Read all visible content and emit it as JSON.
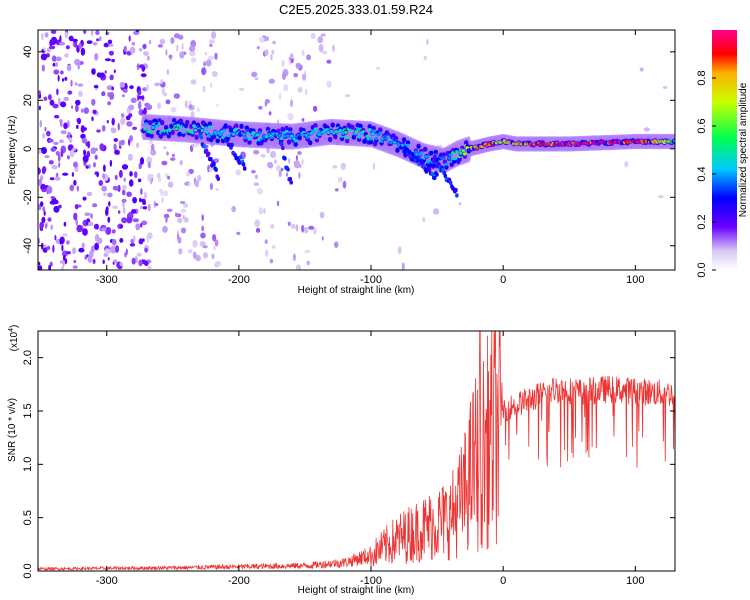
{
  "title": "C2E5.2025.333.01.59.R24",
  "chart_data": [
    {
      "type": "heatmap",
      "xlabel": "Height of straight line (km)",
      "ylabel": "Frequency (Hz)",
      "xlim": [
        -352,
        130
      ],
      "ylim": [
        -50,
        49
      ],
      "x_ticks": [
        -300,
        -200,
        -100,
        0,
        100
      ],
      "x_tick_labels": [
        "-300",
        "-200",
        "-100",
        "0",
        "100"
      ],
      "y_ticks": [
        -40,
        -20,
        0,
        20,
        40
      ],
      "y_tick_labels": [
        "-40",
        "-20",
        "0",
        "20",
        "40"
      ],
      "colorbar": {
        "label": "Normalized spectral amplitude",
        "range": [
          0,
          1
        ],
        "ticks": [
          0.0,
          0.2,
          0.4,
          0.6,
          0.8
        ],
        "tick_labels": [
          "0.0",
          "0.2",
          "0.4",
          "0.6",
          "0.8"
        ]
      },
      "ridge": {
        "description_points_x": [
          -272,
          -240,
          -200,
          -160,
          -130,
          -100,
          -80,
          -60,
          -45,
          -35,
          -25,
          -10,
          0,
          10,
          50,
          100,
          130
        ],
        "frequency_hz": [
          9,
          8,
          6,
          5,
          7,
          6,
          2,
          -3,
          -5,
          -2,
          0,
          2,
          3,
          2,
          2,
          3,
          3
        ],
        "amplitude": [
          0.45,
          0.5,
          0.45,
          0.4,
          0.5,
          0.45,
          0.4,
          0.45,
          0.4,
          0.5,
          0.75,
          0.9,
          0.7,
          0.85,
          0.95,
          0.95,
          0.6
        ]
      }
    },
    {
      "type": "line",
      "xlabel": "Height of straight line (km)",
      "ylabel": "SNR (10 * v/v)",
      "y_scale_label": "(x10",
      "y_scale_exp": "4",
      "color": "#ee3333",
      "xlim": [
        -352,
        130
      ],
      "ylim": [
        0,
        2.25
      ],
      "x_ticks": [
        -300,
        -200,
        -100,
        0,
        100
      ],
      "x_tick_labels": [
        "-300",
        "-200",
        "-100",
        "0",
        "100"
      ],
      "y_ticks": [
        0.0,
        0.5,
        1.0,
        1.5,
        2.0
      ],
      "y_tick_labels": [
        "0.0",
        "0.5",
        "1.0",
        "1.5",
        "2.0"
      ],
      "envelope": {
        "x": [
          -352,
          -250,
          -200,
          -150,
          -120,
          -100,
          -80,
          -60,
          -40,
          -30,
          -20,
          -10,
          0,
          20,
          40,
          60,
          80,
          100,
          130
        ],
        "y": [
          0.02,
          0.03,
          0.04,
          0.05,
          0.08,
          0.15,
          0.3,
          0.4,
          0.5,
          0.7,
          1.1,
          1.4,
          1.55,
          1.65,
          1.75,
          1.72,
          1.75,
          1.73,
          1.7
        ]
      }
    }
  ]
}
